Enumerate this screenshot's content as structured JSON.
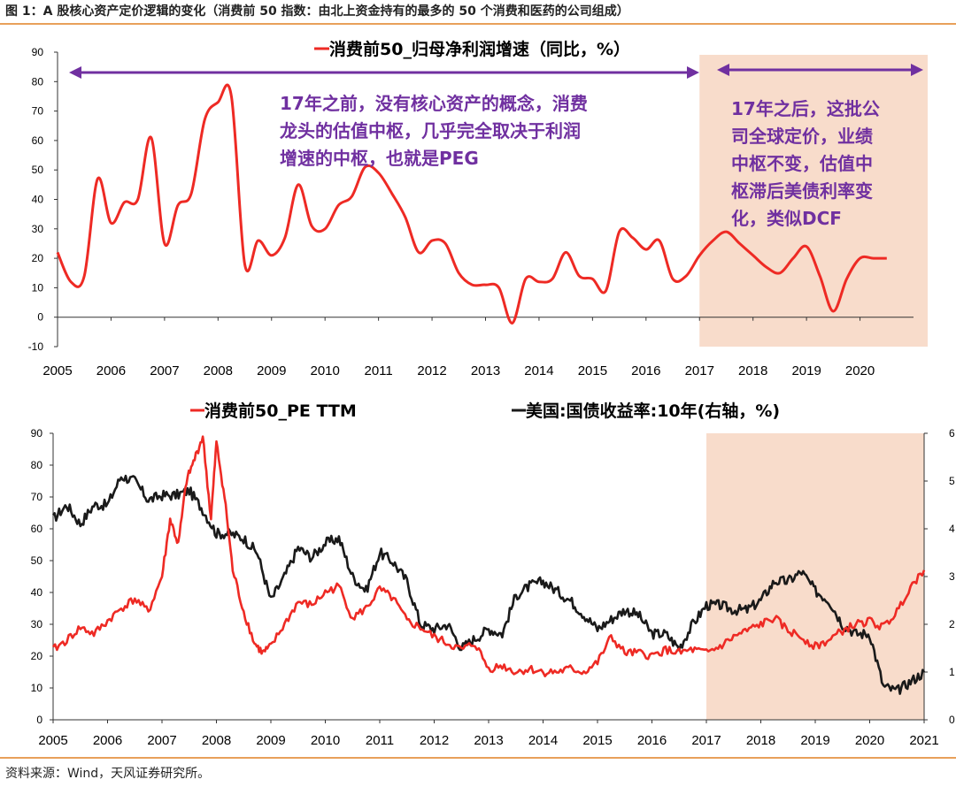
{
  "figure": {
    "title": "图 1：A 股核心资产定价逻辑的变化（消费前 50 指数：由北上资金持有的最多的 50 个消费和医药的公司组成）",
    "source": "资料来源：Wind，天风证券研究所。"
  },
  "colors": {
    "red_series": "#ee2a24",
    "black_series": "#1a1a1a",
    "shade": "#f8dccb",
    "arrow": "#7030a0",
    "annotation": "#7030a0",
    "rule": "#e8a05a"
  },
  "annotations": {
    "top_left": [
      "17年之前，没有核心资产的概念，消费",
      "龙头的估值中枢，几乎完全取决于利润",
      "增速的中枢，也就是PEG"
    ],
    "top_right": [
      "17年之后，这批公",
      "司全球定价，业绩",
      "中枢不变，估值中",
      "枢滞后美债利率变",
      "化，类似DCF"
    ]
  },
  "chart_data": [
    {
      "type": "line",
      "title": "",
      "legend": [
        "消费前50_归母净利润增速（同比，%）"
      ],
      "legend_placement": "top-center",
      "grid": false,
      "ylim": [
        -10,
        90
      ],
      "yticks": [
        -10,
        0,
        10,
        20,
        30,
        40,
        50,
        60,
        70,
        80,
        90
      ],
      "xlim": [
        2005,
        2021
      ],
      "xticks": [
        "2005",
        "2006",
        "2007",
        "2008",
        "2009",
        "2010",
        "2011",
        "2012",
        "2013",
        "2014",
        "2015",
        "2016",
        "2017",
        "2018",
        "2019",
        "2020"
      ],
      "shaded_region": [
        2017,
        2021
      ],
      "series": [
        {
          "name": "消费前50_归母净利润增速（同比，%）",
          "x": [
            2005.0,
            2005.25,
            2005.5,
            2005.75,
            2006.0,
            2006.25,
            2006.5,
            2006.75,
            2007.0,
            2007.25,
            2007.5,
            2007.75,
            2008.0,
            2008.25,
            2008.5,
            2008.75,
            2009.0,
            2009.25,
            2009.5,
            2009.75,
            2010.0,
            2010.25,
            2010.5,
            2010.75,
            2011.0,
            2011.25,
            2011.5,
            2011.75,
            2012.0,
            2012.25,
            2012.5,
            2012.75,
            2013.0,
            2013.25,
            2013.5,
            2013.75,
            2014.0,
            2014.25,
            2014.5,
            2014.75,
            2015.0,
            2015.25,
            2015.5,
            2015.75,
            2016.0,
            2016.25,
            2016.5,
            2016.75,
            2017.0,
            2017.25,
            2017.5,
            2017.75,
            2018.0,
            2018.25,
            2018.5,
            2018.75,
            2019.0,
            2019.25,
            2019.5,
            2019.75,
            2020.0,
            2020.25,
            2020.5
          ],
          "values": [
            22,
            12,
            14,
            47,
            32,
            39,
            40,
            61,
            25,
            38,
            42,
            67,
            73,
            75,
            18,
            26,
            21,
            27,
            45,
            31,
            30,
            38,
            41,
            51,
            49,
            42,
            34,
            22,
            26,
            25,
            15,
            11,
            11,
            10,
            -2,
            13,
            12,
            13,
            22,
            14,
            13,
            9,
            29,
            27,
            23,
            26,
            13,
            14,
            21,
            26,
            29,
            25,
            21,
            17,
            15,
            20,
            24,
            14,
            2,
            13,
            20,
            20,
            20
          ]
        }
      ]
    },
    {
      "type": "line",
      "title": "",
      "legend": [
        "消费前50_PE TTM",
        "美国:国债收益率:10年(右轴，%)"
      ],
      "legend_placement": "top",
      "grid": false,
      "ylim": [
        0,
        90
      ],
      "yticks": [
        0,
        10,
        20,
        30,
        40,
        50,
        60,
        70,
        80,
        90
      ],
      "y2lim": [
        0,
        6
      ],
      "y2ticks": [
        0,
        1,
        2,
        3,
        4,
        5,
        6
      ],
      "xlim": [
        2005,
        2021
      ],
      "xticks": [
        "2005",
        "2006",
        "2007",
        "2008",
        "2009",
        "2010",
        "2011",
        "2012",
        "2013",
        "2014",
        "2015",
        "2016",
        "2017",
        "2018",
        "2019",
        "2020",
        "2021"
      ],
      "shaded_region": [
        2017,
        2021
      ],
      "series": [
        {
          "name": "消费前50_PE TTM",
          "axis": "left",
          "x": [
            2005.0,
            2005.25,
            2005.5,
            2005.75,
            2006.0,
            2006.25,
            2006.5,
            2006.75,
            2007.0,
            2007.15,
            2007.3,
            2007.45,
            2007.6,
            2007.75,
            2007.9,
            2008.0,
            2008.15,
            2008.3,
            2008.5,
            2008.7,
            2008.85,
            2009.0,
            2009.25,
            2009.5,
            2009.75,
            2010.0,
            2010.25,
            2010.5,
            2010.75,
            2011.0,
            2011.25,
            2011.5,
            2011.75,
            2012.0,
            2012.25,
            2012.5,
            2012.75,
            2013.0,
            2013.25,
            2013.5,
            2013.75,
            2014.0,
            2014.25,
            2014.5,
            2014.75,
            2015.0,
            2015.25,
            2015.5,
            2015.75,
            2016.0,
            2016.25,
            2016.5,
            2016.75,
            2017.0,
            2017.25,
            2017.5,
            2017.75,
            2018.0,
            2018.25,
            2018.5,
            2018.75,
            2019.0,
            2019.25,
            2019.5,
            2019.75,
            2020.0,
            2020.25,
            2020.5,
            2020.75,
            2021.0
          ],
          "values": [
            22,
            25,
            29,
            27,
            31,
            35,
            38,
            34,
            45,
            63,
            55,
            75,
            82,
            89,
            63,
            87,
            70,
            47,
            34,
            24,
            21,
            23,
            30,
            37,
            36,
            40,
            42,
            32,
            35,
            41,
            38,
            31,
            29,
            26,
            24,
            22,
            24,
            16,
            17,
            15,
            16,
            15,
            15,
            16,
            15,
            18,
            26,
            21,
            21,
            20,
            22,
            21,
            22,
            21,
            23,
            26,
            28,
            30,
            32,
            28,
            26,
            23,
            25,
            28,
            30,
            31,
            29,
            34,
            42,
            47
          ]
        },
        {
          "name": "美国:国债收益率:10年(右轴，%)",
          "axis": "right",
          "x": [
            2005.0,
            2005.25,
            2005.5,
            2005.75,
            2006.0,
            2006.25,
            2006.5,
            2006.75,
            2007.0,
            2007.25,
            2007.5,
            2007.75,
            2008.0,
            2008.25,
            2008.5,
            2008.75,
            2009.0,
            2009.25,
            2009.5,
            2009.75,
            2010.0,
            2010.25,
            2010.5,
            2010.75,
            2011.0,
            2011.25,
            2011.5,
            2011.75,
            2012.0,
            2012.25,
            2012.5,
            2012.75,
            2013.0,
            2013.25,
            2013.5,
            2013.75,
            2014.0,
            2014.25,
            2014.5,
            2014.75,
            2015.0,
            2015.25,
            2015.5,
            2015.75,
            2016.0,
            2016.25,
            2016.5,
            2016.75,
            2017.0,
            2017.25,
            2017.5,
            2017.75,
            2018.0,
            2018.25,
            2018.5,
            2018.75,
            2019.0,
            2019.25,
            2019.5,
            2019.75,
            2020.0,
            2020.25,
            2020.5,
            2020.75,
            2021.0
          ],
          "values": [
            4.2,
            4.5,
            4.1,
            4.5,
            4.5,
            5.1,
            5.0,
            4.6,
            4.7,
            4.7,
            4.8,
            4.4,
            3.9,
            3.9,
            3.8,
            3.5,
            2.5,
            3.0,
            3.6,
            3.4,
            3.7,
            3.8,
            3.0,
            2.7,
            3.5,
            3.3,
            2.9,
            2.0,
            1.9,
            2.0,
            1.5,
            1.7,
            1.9,
            1.8,
            2.6,
            2.8,
            2.9,
            2.7,
            2.5,
            2.2,
            1.9,
            2.1,
            2.3,
            2.2,
            1.8,
            1.8,
            1.5,
            2.0,
            2.4,
            2.4,
            2.3,
            2.3,
            2.5,
            2.9,
            2.9,
            3.1,
            2.7,
            2.5,
            2.0,
            1.8,
            1.8,
            0.7,
            0.6,
            0.8,
            1.0
          ]
        }
      ]
    }
  ]
}
